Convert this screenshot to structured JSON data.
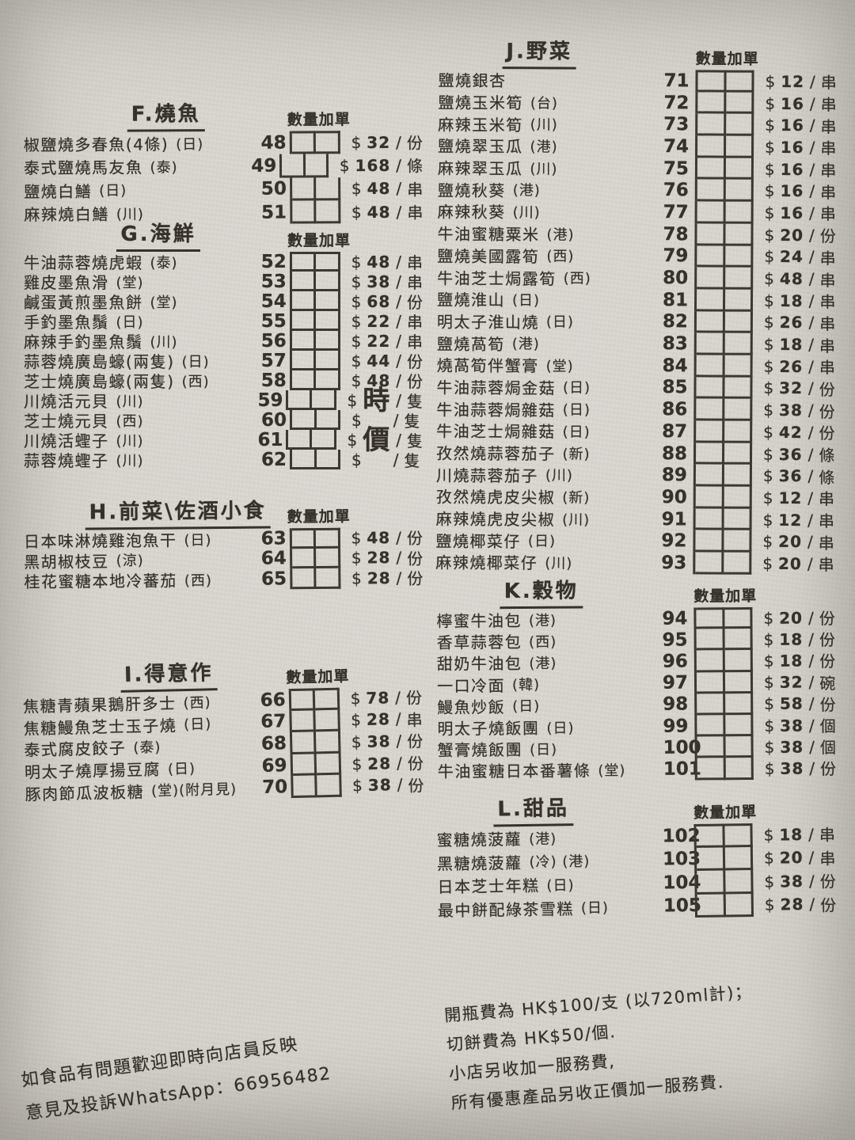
{
  "labels": {
    "dollar": "$",
    "slash": "/",
    "qty_header": "數量加單"
  },
  "sections": [
    {
      "id": "F",
      "title": "F.燒魚",
      "items": [
        {
          "no": "48",
          "name": "椒鹽燒多春魚(4條)",
          "tag": "(日)",
          "price": "32",
          "unit": "份"
        },
        {
          "no": "49",
          "name": "泰式鹽燒馬友魚",
          "tag": "(泰)",
          "price": "168",
          "unit": "條"
        },
        {
          "no": "50",
          "name": "鹽燒白鱔",
          "tag": "(日)",
          "price": "48",
          "unit": "串"
        },
        {
          "no": "51",
          "name": "麻辣燒白鱔",
          "tag": "(川)",
          "price": "48",
          "unit": "串"
        }
      ]
    },
    {
      "id": "G",
      "title": "G.海鮮",
      "items": [
        {
          "no": "52",
          "name": "牛油蒜蓉燒虎蝦",
          "tag": "(泰)",
          "price": "48",
          "unit": "串"
        },
        {
          "no": "53",
          "name": "雞皮墨魚滑",
          "tag": "(堂)",
          "price": "38",
          "unit": "串"
        },
        {
          "no": "54",
          "name": "鹹蛋黃煎墨魚餅",
          "tag": "(堂)",
          "price": "68",
          "unit": "份"
        },
        {
          "no": "55",
          "name": "手釣墨魚鬚",
          "tag": "(日)",
          "price": "22",
          "unit": "串"
        },
        {
          "no": "56",
          "name": "麻辣手釣墨魚鬚",
          "tag": "(川)",
          "price": "22",
          "unit": "串"
        },
        {
          "no": "57",
          "name": "蒜蓉燒廣島蠔(兩隻)",
          "tag": "(日)",
          "price": "44",
          "unit": "份"
        },
        {
          "no": "58",
          "name": "芝士燒廣島蠔(兩隻)",
          "tag": "(西)",
          "price": "48",
          "unit": "份"
        },
        {
          "no": "59",
          "name": "川燒活元貝",
          "tag": "(川)",
          "price": "時",
          "unit": "隻",
          "big": true
        },
        {
          "no": "60",
          "name": "芝士燒元貝",
          "tag": "(西)",
          "price": "",
          "unit": "隻"
        },
        {
          "no": "61",
          "name": "川燒活蟶子",
          "tag": "(川)",
          "price": "價",
          "unit": "隻",
          "big": true
        },
        {
          "no": "62",
          "name": "蒜蓉燒蟶子",
          "tag": "(川)",
          "price": "",
          "unit": "隻"
        }
      ]
    },
    {
      "id": "H",
      "title": "H.前菜\\佐酒小食",
      "items": [
        {
          "no": "63",
          "name": "日本味淋燒雞泡魚干",
          "tag": "(日)",
          "price": "48",
          "unit": "份"
        },
        {
          "no": "64",
          "name": "黑胡椒枝豆",
          "tag": "(涼)",
          "price": "28",
          "unit": "份"
        },
        {
          "no": "65",
          "name": "桂花蜜糖本地冷蕃茄",
          "tag": "(西)",
          "price": "28",
          "unit": "份"
        }
      ]
    },
    {
      "id": "I",
      "title": "I.得意作",
      "items": [
        {
          "no": "66",
          "name": "焦糖青蘋果鵝肝多士",
          "tag": "(西)",
          "price": "78",
          "unit": "份"
        },
        {
          "no": "67",
          "name": "焦糖鰻魚芝士玉子燒",
          "tag": "(日)",
          "price": "28",
          "unit": "串"
        },
        {
          "no": "68",
          "name": "泰式腐皮餃子",
          "tag": "(泰)",
          "price": "38",
          "unit": "份"
        },
        {
          "no": "69",
          "name": "明太子燒厚揚豆腐",
          "tag": "(日)",
          "price": "28",
          "unit": "份"
        },
        {
          "no": "70",
          "name": "豚肉節瓜波板糖",
          "tag": "(堂)(附月見)",
          "price": "38",
          "unit": "份"
        }
      ]
    },
    {
      "id": "J",
      "title": "J.野菜",
      "items": [
        {
          "no": "71",
          "name": "鹽燒銀杏",
          "tag": "",
          "price": "12",
          "unit": "串"
        },
        {
          "no": "72",
          "name": "鹽燒玉米筍",
          "tag": "(台)",
          "price": "16",
          "unit": "串"
        },
        {
          "no": "73",
          "name": "麻辣玉米筍",
          "tag": "(川)",
          "price": "16",
          "unit": "串"
        },
        {
          "no": "74",
          "name": "鹽燒翠玉瓜",
          "tag": "(港)",
          "price": "16",
          "unit": "串"
        },
        {
          "no": "75",
          "name": "麻辣翠玉瓜",
          "tag": "(川)",
          "price": "16",
          "unit": "串"
        },
        {
          "no": "76",
          "name": "鹽燒秋葵",
          "tag": "(港)",
          "price": "16",
          "unit": "串"
        },
        {
          "no": "77",
          "name": "麻辣秋葵",
          "tag": "(川)",
          "price": "16",
          "unit": "串"
        },
        {
          "no": "78",
          "name": "牛油蜜糖粟米",
          "tag": "(港)",
          "price": "20",
          "unit": "份"
        },
        {
          "no": "79",
          "name": "鹽燒美國露筍",
          "tag": "(西)",
          "price": "24",
          "unit": "串"
        },
        {
          "no": "80",
          "name": "牛油芝士焗露筍",
          "tag": "(西)",
          "price": "48",
          "unit": "串"
        },
        {
          "no": "81",
          "name": "鹽燒淮山",
          "tag": "(日)",
          "price": "18",
          "unit": "串"
        },
        {
          "no": "82",
          "name": "明太子淮山燒",
          "tag": "(日)",
          "price": "26",
          "unit": "串"
        },
        {
          "no": "83",
          "name": "鹽燒萵筍",
          "tag": "(港)",
          "price": "18",
          "unit": "串"
        },
        {
          "no": "84",
          "name": "燒萵筍伴蟹膏",
          "tag": "(堂)",
          "price": "26",
          "unit": "串"
        },
        {
          "no": "85",
          "name": "牛油蒜蓉焗金菇",
          "tag": "(日)",
          "price": "32",
          "unit": "份"
        },
        {
          "no": "86",
          "name": "牛油蒜蓉焗雜菇",
          "tag": "(日)",
          "price": "38",
          "unit": "份"
        },
        {
          "no": "87",
          "name": "牛油芝士焗雜菇",
          "tag": "(日)",
          "price": "42",
          "unit": "份"
        },
        {
          "no": "88",
          "name": "孜然燒蒜蓉茄子",
          "tag": "(新)",
          "price": "36",
          "unit": "條"
        },
        {
          "no": "89",
          "name": "川燒蒜蓉茄子",
          "tag": "(川)",
          "price": "36",
          "unit": "條"
        },
        {
          "no": "90",
          "name": "孜然燒虎皮尖椒",
          "tag": "(新)",
          "price": "12",
          "unit": "串"
        },
        {
          "no": "91",
          "name": "麻辣燒虎皮尖椒",
          "tag": "(川)",
          "price": "12",
          "unit": "串"
        },
        {
          "no": "92",
          "name": "鹽燒椰菜仔",
          "tag": "(日)",
          "price": "20",
          "unit": "串"
        },
        {
          "no": "93",
          "name": "麻辣燒椰菜仔",
          "tag": "(川)",
          "price": "20",
          "unit": "串"
        }
      ]
    },
    {
      "id": "K",
      "title": "K.穀物",
      "items": [
        {
          "no": "94",
          "name": "檸蜜牛油包",
          "tag": "(港)",
          "price": "20",
          "unit": "份"
        },
        {
          "no": "95",
          "name": "香草蒜蓉包",
          "tag": "(西)",
          "price": "18",
          "unit": "份"
        },
        {
          "no": "96",
          "name": "甜奶牛油包",
          "tag": "(港)",
          "price": "18",
          "unit": "份"
        },
        {
          "no": "97",
          "name": "一口冷面",
          "tag": "(韓)",
          "price": "32",
          "unit": "碗"
        },
        {
          "no": "98",
          "name": "鰻魚炒飯",
          "tag": "(日)",
          "price": "58",
          "unit": "份"
        },
        {
          "no": "99",
          "name": "明太子燒飯團",
          "tag": "(日)",
          "price": "38",
          "unit": "個"
        },
        {
          "no": "100",
          "name": "蟹膏燒飯團",
          "tag": "(日)",
          "price": "38",
          "unit": "個"
        },
        {
          "no": "101",
          "name": "牛油蜜糖日本番薯條",
          "tag": "(堂)",
          "price": "38",
          "unit": "份"
        }
      ]
    },
    {
      "id": "L",
      "title": "L.甜品",
      "items": [
        {
          "no": "102",
          "name": "蜜糖燒菠蘿",
          "tag": "(港)",
          "price": "18",
          "unit": "串"
        },
        {
          "no": "103",
          "name": "黑糖燒菠蘿",
          "tag": "(冷) (港)",
          "price": "20",
          "unit": "串"
        },
        {
          "no": "104",
          "name": "日本芝士年糕",
          "tag": "(日)",
          "price": "38",
          "unit": "份"
        },
        {
          "no": "105",
          "name": "最中餅配綠茶雪糕",
          "tag": "(日)",
          "price": "28",
          "unit": "份"
        }
      ]
    }
  ],
  "notes_right": [
    "開瓶費為 HK$100/支 (以720ml計)；",
    "切餅費為 HK$50/個.",
    "小店另收加一服務費,",
    "所有優惠產品另收正價加一服務費."
  ],
  "notes_left": [
    "如食品有問題歡迎即時向店員反映",
    "意見及投訴WhatsApp：66956482"
  ]
}
